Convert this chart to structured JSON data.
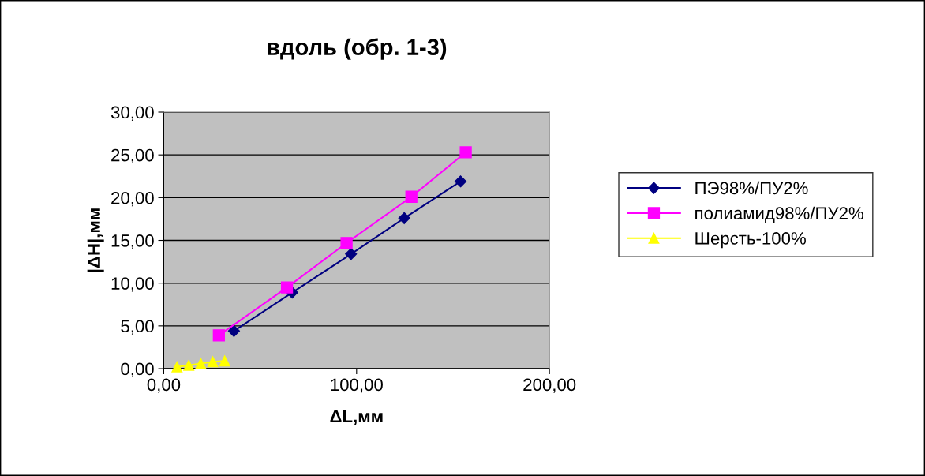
{
  "chart_data": {
    "type": "line",
    "title": "вдоль (обр. 1-3)",
    "xlabel": "ΔL,мм",
    "ylabel": "|ΔH|,мм",
    "xlim": [
      0,
      200
    ],
    "xticks": [
      {
        "value": 0,
        "label": "0,00"
      },
      {
        "value": 100,
        "label": "100,00"
      },
      {
        "value": 200,
        "label": "200,00"
      }
    ],
    "ylim": [
      0,
      30
    ],
    "yticks": [
      {
        "value": 0,
        "label": "0,00"
      },
      {
        "value": 5,
        "label": "5,00"
      },
      {
        "value": 10,
        "label": "10,00"
      },
      {
        "value": 15,
        "label": "15,00"
      },
      {
        "value": 20,
        "label": "20,00"
      },
      {
        "value": 25,
        "label": "25,00"
      },
      {
        "value": 30,
        "label": "30,00"
      }
    ],
    "grid": "y",
    "legend": "right",
    "series": [
      {
        "name": "ПЭ98%/ПУ2%",
        "color": "#000080",
        "marker": "diamond",
        "x": [
          36.4,
          66.6,
          97.1,
          124.7,
          153.9
        ],
        "values": [
          4.4,
          8.9,
          13.4,
          17.6,
          21.9
        ]
      },
      {
        "name": "полиамид98%/ПУ2%",
        "color": "#ff00ff",
        "marker": "square",
        "x": [
          28.6,
          63.9,
          94.8,
          128.4,
          156.6
        ],
        "values": [
          3.9,
          9.5,
          14.7,
          20.1,
          25.3
        ]
      },
      {
        "name": "Шерсть-100%",
        "color": "#ffff00",
        "marker": "triangle",
        "x": [
          6.9,
          13.0,
          19.2,
          25.4,
          31.6
        ],
        "values": [
          0.2,
          0.4,
          0.6,
          0.8,
          0.9
        ]
      }
    ]
  }
}
